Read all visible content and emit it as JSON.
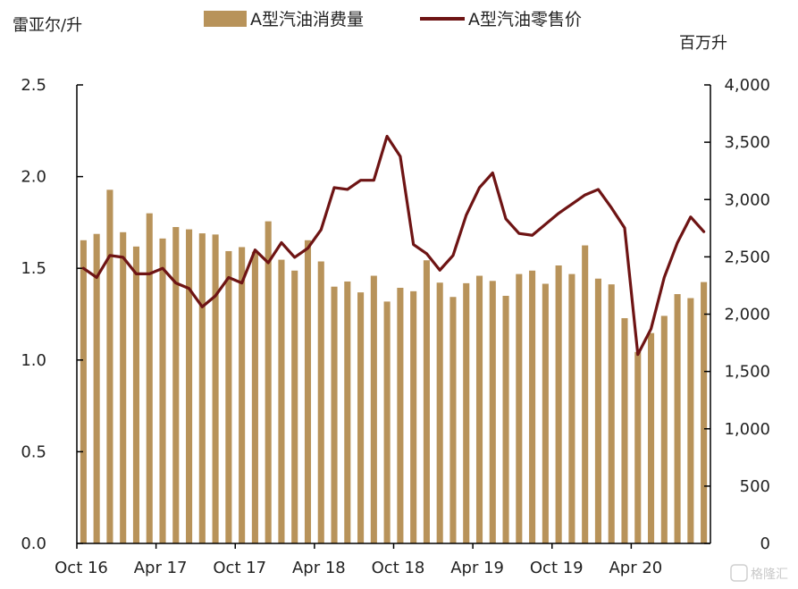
{
  "chart_data": {
    "type": "bar",
    "left_axis_label": "雷亚尔/升",
    "right_axis_label": "百万升",
    "legend": [
      {
        "label": "A型汽油消费量",
        "kind": "bar"
      },
      {
        "label": "A型汽油零售价",
        "kind": "line"
      }
    ],
    "colors": {
      "bar": "#b8935a",
      "line": "#6e1414",
      "axis": "#000000"
    },
    "left_ylim": [
      0,
      2.5
    ],
    "right_ylim": [
      0,
      4000
    ],
    "left_ticks": [
      "0.0",
      "0.5",
      "1.0",
      "1.5",
      "2.0",
      "2.5"
    ],
    "right_ticks": [
      "0",
      "500",
      "1,000",
      "1,500",
      "2,000",
      "2,500",
      "3,000",
      "3,500",
      "4,000"
    ],
    "x_tick_labels": [
      {
        "label": "Oct 16",
        "index": 0
      },
      {
        "label": "Apr 17",
        "index": 6
      },
      {
        "label": "Oct 17",
        "index": 12
      },
      {
        "label": "Apr 18",
        "index": 18
      },
      {
        "label": "Oct 18",
        "index": 24
      },
      {
        "label": "Apr 19",
        "index": 30
      },
      {
        "label": "Oct 19",
        "index": 36
      },
      {
        "label": "Apr 20",
        "index": 42
      }
    ],
    "months": [
      "2016-10",
      "2016-11",
      "2016-12",
      "2017-01",
      "2017-02",
      "2017-03",
      "2017-04",
      "2017-05",
      "2017-06",
      "2017-07",
      "2017-08",
      "2017-09",
      "2017-10",
      "2017-11",
      "2017-12",
      "2018-01",
      "2018-02",
      "2018-03",
      "2018-04",
      "2018-05",
      "2018-06",
      "2018-07",
      "2018-08",
      "2018-09",
      "2018-10",
      "2018-11",
      "2018-12",
      "2019-01",
      "2019-02",
      "2019-03",
      "2019-04",
      "2019-05",
      "2019-06",
      "2019-07",
      "2019-08",
      "2019-09",
      "2019-10",
      "2019-11",
      "2019-12",
      "2020-01",
      "2020-02",
      "2020-03",
      "2020-04",
      "2020-05",
      "2020-06",
      "2020-07",
      "2020-08",
      "2020-09"
    ],
    "consumption_series": {
      "name": "A型汽油消费量",
      "axis": "right",
      "values": [
        2645,
        2700,
        3085,
        2715,
        2590,
        2880,
        2660,
        2760,
        2740,
        2705,
        2695,
        2550,
        2585,
        2545,
        2810,
        2475,
        2380,
        2645,
        2460,
        2240,
        2285,
        2190,
        2335,
        2110,
        2230,
        2200,
        2470,
        2275,
        2150,
        2270,
        2335,
        2290,
        2160,
        2350,
        2380,
        2265,
        2425,
        2350,
        2600,
        2310,
        2260,
        1965,
        1670,
        1835,
        1985,
        2175,
        2140,
        2280
      ]
    },
    "price_series": {
      "name": "A型汽油零售价",
      "axis": "left",
      "values": [
        1.5,
        1.45,
        1.57,
        1.56,
        1.47,
        1.47,
        1.5,
        1.42,
        1.39,
        1.29,
        1.35,
        1.45,
        1.42,
        1.6,
        1.53,
        1.64,
        1.56,
        1.61,
        1.71,
        1.94,
        1.93,
        1.98,
        1.98,
        2.22,
        2.11,
        1.63,
        1.58,
        1.49,
        1.57,
        1.79,
        1.94,
        2.02,
        1.77,
        1.69,
        1.68,
        1.74,
        1.8,
        1.85,
        1.9,
        1.93,
        1.83,
        1.72,
        1.03,
        1.17,
        1.45,
        1.64,
        1.78,
        1.7
      ]
    },
    "watermark": "格隆汇"
  }
}
